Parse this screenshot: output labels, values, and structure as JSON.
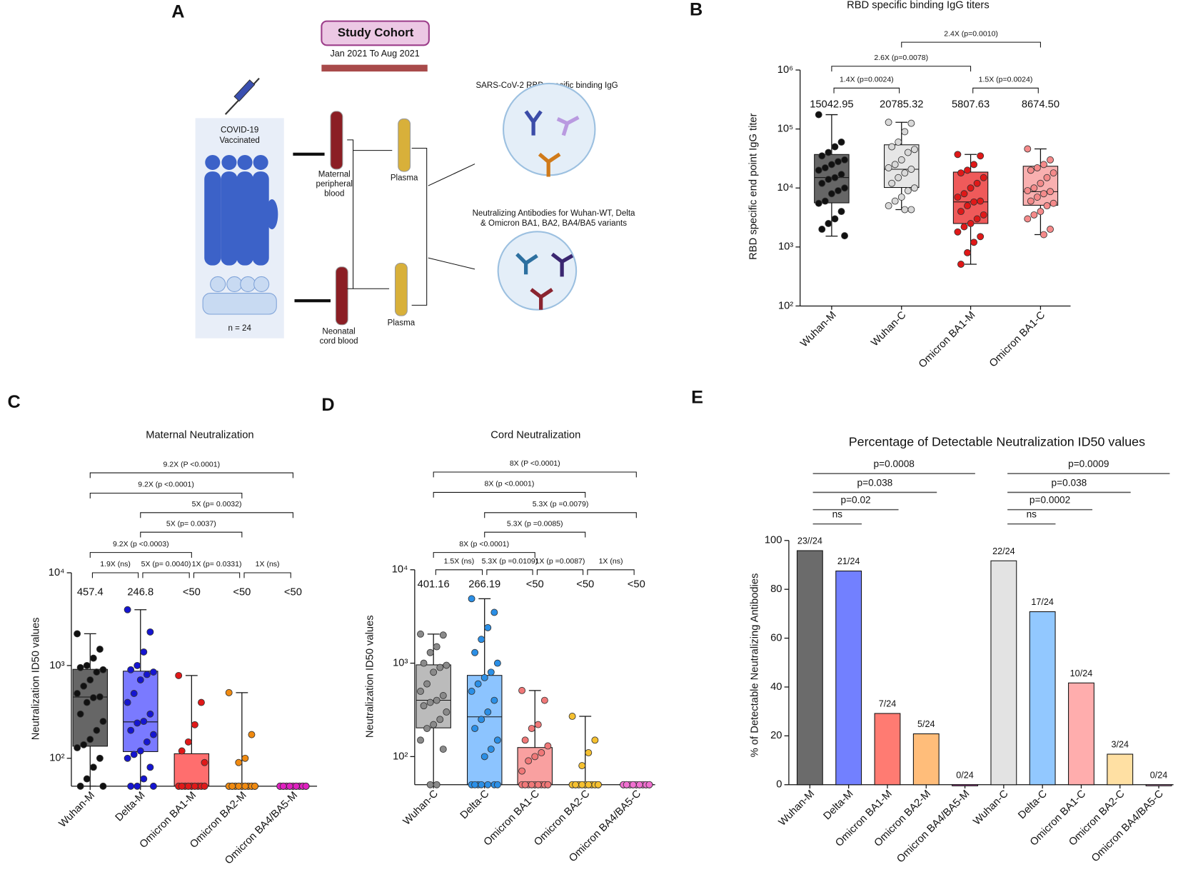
{
  "diagram": {
    "panel": "A",
    "title": "Study Cohort",
    "period": "Jan 2021 To Aug 2021",
    "group": [
      "COVID-19",
      "Vaccinated"
    ],
    "n": "n = 24",
    "maternal": [
      "Maternal",
      "peripheral",
      "blood"
    ],
    "neonatal": [
      "Neonatal",
      "cord blood"
    ],
    "plasma": [
      "Plasma",
      "Plasma"
    ],
    "assay1": "SARS-CoV-2 RBD specific binding  IgG",
    "assay2": [
      "Neutralizing Antibodies for Wuhan-WT, Delta",
      "& Omicron BA1, BA2, BA4/BA5 variants"
    ]
  },
  "chart_data": [
    {
      "type": "box",
      "panel": "B",
      "title": "RBD specific binding IgG titers",
      "ylabel": "RBD specific end point IgG  titer",
      "log": true,
      "ylim": [
        100,
        1000000
      ],
      "yticks": [
        {
          "value": 100,
          "label": "10²"
        },
        {
          "value": 1000,
          "label": "10³"
        },
        {
          "value": 10000,
          "label": "10⁴"
        },
        {
          "value": 100000,
          "label": "10⁵"
        },
        {
          "value": 1000000,
          "label": "10⁶"
        }
      ],
      "categories": [
        "Wuhan-M",
        "Wuhan-C",
        "Omicron BA1-M",
        "Omicron BA1-C"
      ],
      "colors": [
        "#666666",
        "#e6e6e6",
        "#ef5a5a",
        "#f9b0b0"
      ],
      "point_colors": [
        "#111111",
        "#d9d9d9",
        "#e01818",
        "#f58a8a"
      ],
      "min": [
        1530,
        4300,
        510,
        1620
      ],
      "q1": [
        5600,
        10200,
        2500,
        5100
      ],
      "median": [
        15042.95,
        20785.32,
        5807.63,
        8674.5
      ],
      "q3": [
        37000,
        54000,
        18600,
        23400
      ],
      "max": [
        175000,
        130000,
        37000,
        46000
      ],
      "median_labels": [
        "15042.95",
        "20785.32",
        "5807.63",
        "8674.50"
      ],
      "points": [
        [
          175000,
          60000,
          50000,
          40000,
          35000,
          30000,
          28000,
          25000,
          22000,
          20000,
          17000,
          15000,
          14000,
          12000,
          10000,
          9000,
          8000,
          6000,
          5500,
          4000,
          3000,
          2500,
          2000,
          1550
        ],
        [
          130000,
          125000,
          90000,
          60000,
          50000,
          45000,
          40000,
          30000,
          25000,
          22000,
          20785,
          18000,
          15000,
          12000,
          10000,
          9000,
          7000,
          6000,
          5000,
          4300,
          4300
        ],
        [
          37000,
          35000,
          25000,
          20000,
          18000,
          15000,
          12000,
          10000,
          8000,
          7000,
          6000,
          5800,
          5000,
          4000,
          3500,
          3000,
          2500,
          2200,
          1800,
          1500,
          1200,
          800,
          510
        ],
        [
          46000,
          30000,
          25000,
          22000,
          20000,
          18000,
          15000,
          12000,
          10000,
          9000,
          8700,
          8000,
          7000,
          6000,
          5500,
          5000,
          4000,
          3500,
          3000,
          2000,
          1620
        ]
      ],
      "comparisons": [
        "2.4X (p=0.0010)",
        "2.6X (p=0.0078)",
        "1.4X (p=0.0024)",
        "1.5X (p=0.0024)"
      ]
    },
    {
      "type": "box",
      "panel": "C",
      "title": "Maternal Neutralization",
      "ylabel": "Neutralization ID50 values",
      "log": true,
      "ylim": [
        50,
        10000
      ],
      "yticks": [
        {
          "value": 100,
          "label": "10²"
        },
        {
          "value": 1000,
          "label": "10³"
        },
        {
          "value": 10000,
          "label": "10⁴"
        }
      ],
      "categories": [
        "Wuhan-M",
        "Delta-M",
        "Omicron BA1-M",
        "Omicron BA2-M",
        "Omicron BA4/BA5-M"
      ],
      "colors": [
        "#666666",
        "#7a7aff",
        "#ff6e6e",
        "#ffb070",
        "#e05ac8"
      ],
      "point_colors": [
        "#111111",
        "#1515d0",
        "#e01818",
        "#f08a10",
        "#e020c0"
      ],
      "min": [
        50,
        50,
        50,
        50,
        50
      ],
      "q1": [
        135,
        118,
        50,
        50,
        50
      ],
      "median": [
        457.4,
        246.8,
        50,
        50,
        50
      ],
      "q3": [
        910,
        870,
        112,
        50,
        50
      ],
      "max": [
        2200,
        4000,
        780,
        510,
        50
      ],
      "median_labels": [
        "457.4",
        "246.8",
        "<50",
        "<50",
        "<50"
      ],
      "points": [
        [
          2200,
          1500,
          1200,
          1000,
          950,
          900,
          850,
          700,
          600,
          500,
          460,
          450,
          400,
          300,
          250,
          200,
          160,
          140,
          130,
          100,
          80,
          60,
          50,
          50
        ],
        [
          4000,
          2300,
          1400,
          1000,
          900,
          850,
          800,
          700,
          500,
          400,
          300,
          250,
          240,
          200,
          180,
          150,
          120,
          110,
          100,
          80,
          60,
          50,
          50,
          50
        ],
        [
          780,
          400,
          230,
          150,
          120,
          90,
          50,
          50,
          50,
          50,
          50,
          50,
          50,
          50,
          50,
          50,
          50,
          50,
          50,
          50,
          50,
          50,
          50,
          50
        ],
        [
          510,
          180,
          100,
          90,
          50,
          50,
          50,
          50,
          50,
          50,
          50,
          50,
          50,
          50,
          50,
          50,
          50,
          50,
          50,
          50,
          50,
          50,
          50,
          50
        ],
        [
          50,
          50,
          50,
          50,
          50,
          50,
          50,
          50,
          50,
          50,
          50,
          50,
          50,
          50,
          50,
          50,
          50,
          50,
          50,
          50,
          50,
          50,
          50,
          50
        ]
      ],
      "comparisons": [
        "9.2X (P <0.0001)",
        "9.2X (p <0.0001)",
        "5X (p= 0.0032)",
        "5X (p= 0.0037)",
        "9.2X (p <0.0003)",
        "1.9X (ns)",
        "5X (p= 0.0040)",
        "1X (p= 0.0331)",
        "1X (ns)"
      ]
    },
    {
      "type": "box",
      "panel": "D",
      "title": "Cord Neutralization",
      "ylabel": "Neutralization ID50 values",
      "log": true,
      "ylim": [
        50,
        10000
      ],
      "yticks": [
        {
          "value": 100,
          "label": "10²"
        },
        {
          "value": 1000,
          "label": "10³"
        },
        {
          "value": 10000,
          "label": "10⁴"
        }
      ],
      "categories": [
        "Wuhan-C",
        "Delta-C",
        "Omicron BA1-C",
        "Omicron BA2-C",
        "Omicron BA4/BA5-C"
      ],
      "colors": [
        "#bbbbbb",
        "#8cc4ff",
        "#f9a0a0",
        "#ffd080",
        "#f0a0dc"
      ],
      "point_colors": [
        "#8a8a8a",
        "#2b8fe6",
        "#f07878",
        "#f5c030",
        "#f070d0"
      ],
      "min": [
        50,
        50,
        50,
        50,
        50
      ],
      "q1": [
        203,
        50,
        50,
        50,
        50
      ],
      "median": [
        401.16,
        266.19,
        50,
        50,
        50
      ],
      "q3": [
        960,
        740,
        125,
        50,
        50
      ],
      "max": [
        2050,
        4900,
        510,
        270,
        50
      ],
      "median_labels": [
        "401.16",
        "266.19",
        "<50",
        "<50",
        "<50"
      ],
      "points": [
        [
          2050,
          2000,
          1500,
          1300,
          1000,
          950,
          900,
          800,
          600,
          500,
          450,
          400,
          380,
          350,
          300,
          250,
          220,
          200,
          150,
          120,
          50,
          50
        ],
        [
          4900,
          3500,
          2400,
          1800,
          1300,
          1000,
          800,
          700,
          600,
          500,
          400,
          300,
          250,
          200,
          150,
          120,
          100,
          50,
          50,
          50,
          50,
          50,
          50,
          50
        ],
        [
          510,
          400,
          220,
          200,
          150,
          130,
          110,
          100,
          90,
          70,
          50,
          50,
          50,
          50,
          50,
          50,
          50,
          50,
          50,
          50,
          50,
          50,
          50,
          50
        ],
        [
          270,
          150,
          110,
          80,
          50,
          50,
          50,
          50,
          50,
          50,
          50,
          50,
          50,
          50,
          50,
          50,
          50,
          50,
          50,
          50,
          50,
          50,
          50,
          50
        ],
        [
          50,
          50,
          50,
          50,
          50,
          50,
          50,
          50,
          50,
          50,
          50,
          50,
          50,
          50,
          50,
          50,
          50,
          50,
          50,
          50,
          50,
          50,
          50,
          50
        ]
      ],
      "comparisons": [
        "8X (P <0.0001)",
        "8X (p <0.0001)",
        "5.3X (p =0.0079)",
        "5.3X (p =0.0085)",
        "8X (p <0.0001)",
        "1.5X (ns)",
        "5.3X (p =0.0109)",
        "1X (p =0.0087)",
        "1X (ns)"
      ]
    },
    {
      "type": "bar",
      "panel": "E",
      "title": "Percentage of Detectable Neutralization ID50 values",
      "ylabel": "% of Detectable Neutralizing Antibodies",
      "ylim": [
        0,
        100
      ],
      "yticks": [
        0,
        20,
        40,
        60,
        80,
        100
      ],
      "categories": [
        "Wuhan-M",
        "Delta-M",
        "Omicron BA1-M",
        "Omicron BA2-M",
        "Omicron BA4/BA5-M",
        "Wuhan-C",
        "Delta-C",
        "Omicron BA1-C",
        "Omicron BA2-C",
        "Omicron BA4/BA5-C"
      ],
      "values": [
        95.83,
        87.5,
        29.17,
        20.83,
        0,
        91.67,
        70.83,
        41.67,
        12.5,
        0
      ],
      "value_labels": [
        "23//24",
        "21/24",
        "7/24",
        "5/24",
        "0/24",
        "22/24",
        "17/24",
        "10/24",
        "3/24",
        "0/24"
      ],
      "colors": [
        "#6b6b6b",
        "#7280ff",
        "#ff7b72",
        "#ffbd7a",
        "#d64fc0",
        "#e3e3e3",
        "#92c8ff",
        "#ffadad",
        "#ffe0a3",
        "#f0a3dc"
      ],
      "comparisons": [
        "p=0.0008",
        "p=0.038",
        "p=0.02",
        "ns",
        "p=0.0009",
        "p=0.038",
        "p=0.0002",
        "ns"
      ]
    }
  ]
}
